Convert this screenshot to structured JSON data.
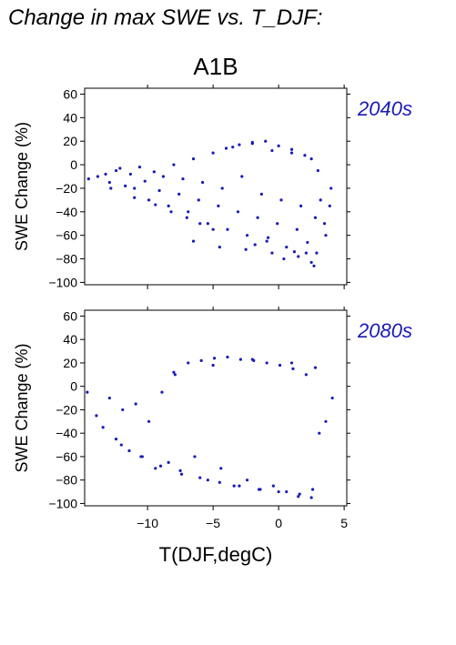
{
  "page_title": "Change in max SWE vs. T_DJF:",
  "chart_data": [
    {
      "type": "scatter",
      "title": "A1B",
      "period_label": "2040s",
      "ylabel": "SWE Change (%)",
      "xlabel": "",
      "xlim": [
        -14.8,
        5.2
      ],
      "ylim": [
        -102,
        65
      ],
      "xticks": [
        -10,
        -5,
        0,
        5
      ],
      "yticks": [
        -100,
        -80,
        -60,
        -40,
        -20,
        0,
        20,
        40,
        60
      ],
      "xtick_labels_shown": false,
      "grid": false,
      "color": "#1a1ab8",
      "series": [
        {
          "x": [
            -14.5,
            -13.8,
            -13.2,
            -12.9,
            -12.4,
            -12.1,
            -11.7,
            -11.3,
            -11.0,
            -10.6,
            -10.2,
            -9.9,
            -9.5,
            -9.1,
            -8.8,
            -8.4,
            -8.0,
            -7.6,
            -7.3,
            -6.9,
            -6.5,
            -6.1,
            -5.8,
            -5.4,
            -5.0,
            -4.6,
            -4.3,
            -3.9,
            -3.5,
            -3.1,
            -2.8,
            -2.4,
            -2.0,
            -1.6,
            -1.3,
            -0.9,
            -0.5,
            -0.1,
            0.2,
            0.6,
            1.0,
            1.4,
            1.7,
            2.1,
            2.5,
            2.8,
            3.2,
            3.6,
            4.0,
            -12.8,
            -11.0,
            -9.4,
            -8.2,
            -7.0,
            -6.0,
            -5.0,
            -4.0,
            -3.0,
            -2.0,
            -1.0,
            0.0,
            1.0,
            2.0,
            3.0,
            -6.5,
            -4.5,
            -2.5,
            -0.5,
            1.5,
            2.5,
            2.7,
            2.9,
            -1.8,
            -0.8,
            0.4,
            1.2,
            2.2,
            3.5,
            3.9
          ],
          "y": [
            -12,
            -10,
            -8,
            -15,
            -5,
            -3,
            -18,
            -8,
            -20,
            -2,
            -14,
            -30,
            -6,
            -22,
            -10,
            -35,
            0,
            -25,
            -12,
            -40,
            5,
            -30,
            -15,
            -50,
            10,
            -35,
            -20,
            -55,
            15,
            -40,
            -10,
            -60,
            18,
            -45,
            -25,
            -65,
            12,
            -50,
            -30,
            -70,
            10,
            -55,
            -35,
            -75,
            5,
            -45,
            -30,
            -60,
            -20,
            -20,
            -28,
            -34,
            -40,
            -45,
            -50,
            -55,
            14,
            17,
            19,
            20,
            16,
            13,
            8,
            -5,
            -65,
            -70,
            -72,
            -75,
            -78,
            -83,
            -86,
            -75,
            -68,
            -62,
            -80,
            -74,
            -66,
            -50,
            -35
          ]
        }
      ]
    },
    {
      "type": "scatter",
      "title": "",
      "period_label": "2080s",
      "ylabel": "SWE Change (%)",
      "xlabel": "T(DJF,degC)",
      "xlim": [
        -14.8,
        5.2
      ],
      "ylim": [
        -102,
        65
      ],
      "xticks": [
        -10,
        -5,
        0,
        5
      ],
      "xtick_labels": [
        "−10",
        "−5",
        "0",
        "5"
      ],
      "yticks": [
        -100,
        -80,
        -60,
        -40,
        -20,
        0,
        20,
        40,
        60
      ],
      "grid": false,
      "color": "#1a1ab8",
      "series": [
        {
          "x": [
            -14.6,
            -13.9,
            -13.4,
            -12.9,
            -12.4,
            -11.9,
            -11.4,
            -10.9,
            -10.4,
            -9.9,
            -9.4,
            -8.9,
            -8.4,
            -7.9,
            -7.4,
            -6.9,
            -6.4,
            -5.9,
            -5.4,
            -4.9,
            -4.4,
            -3.9,
            -3.4,
            -2.9,
            -2.4,
            -1.9,
            -1.4,
            -0.9,
            -0.4,
            0.1,
            0.6,
            1.1,
            1.6,
            2.1,
            2.6,
            3.1,
            3.6,
            4.1,
            -12.0,
            -10.5,
            -9.0,
            -7.5,
            -6.0,
            -4.5,
            -3.0,
            -1.5,
            0.0,
            1.5,
            2.5,
            -8.0,
            -5.0,
            -2.0,
            1.0,
            2.8
          ],
          "y": [
            -5,
            -25,
            -35,
            -10,
            -45,
            -20,
            -55,
            -15,
            -60,
            -30,
            -70,
            -5,
            -65,
            10,
            -75,
            20,
            -60,
            22,
            -80,
            24,
            -70,
            25,
            -85,
            23,
            -80,
            22,
            -88,
            20,
            -85,
            18,
            -90,
            15,
            -92,
            10,
            -88,
            -40,
            -30,
            -10,
            -50,
            -60,
            -68,
            -72,
            -78,
            -82,
            -85,
            -88,
            -90,
            -94,
            -95,
            12,
            18,
            23,
            20,
            16
          ]
        }
      ]
    }
  ]
}
